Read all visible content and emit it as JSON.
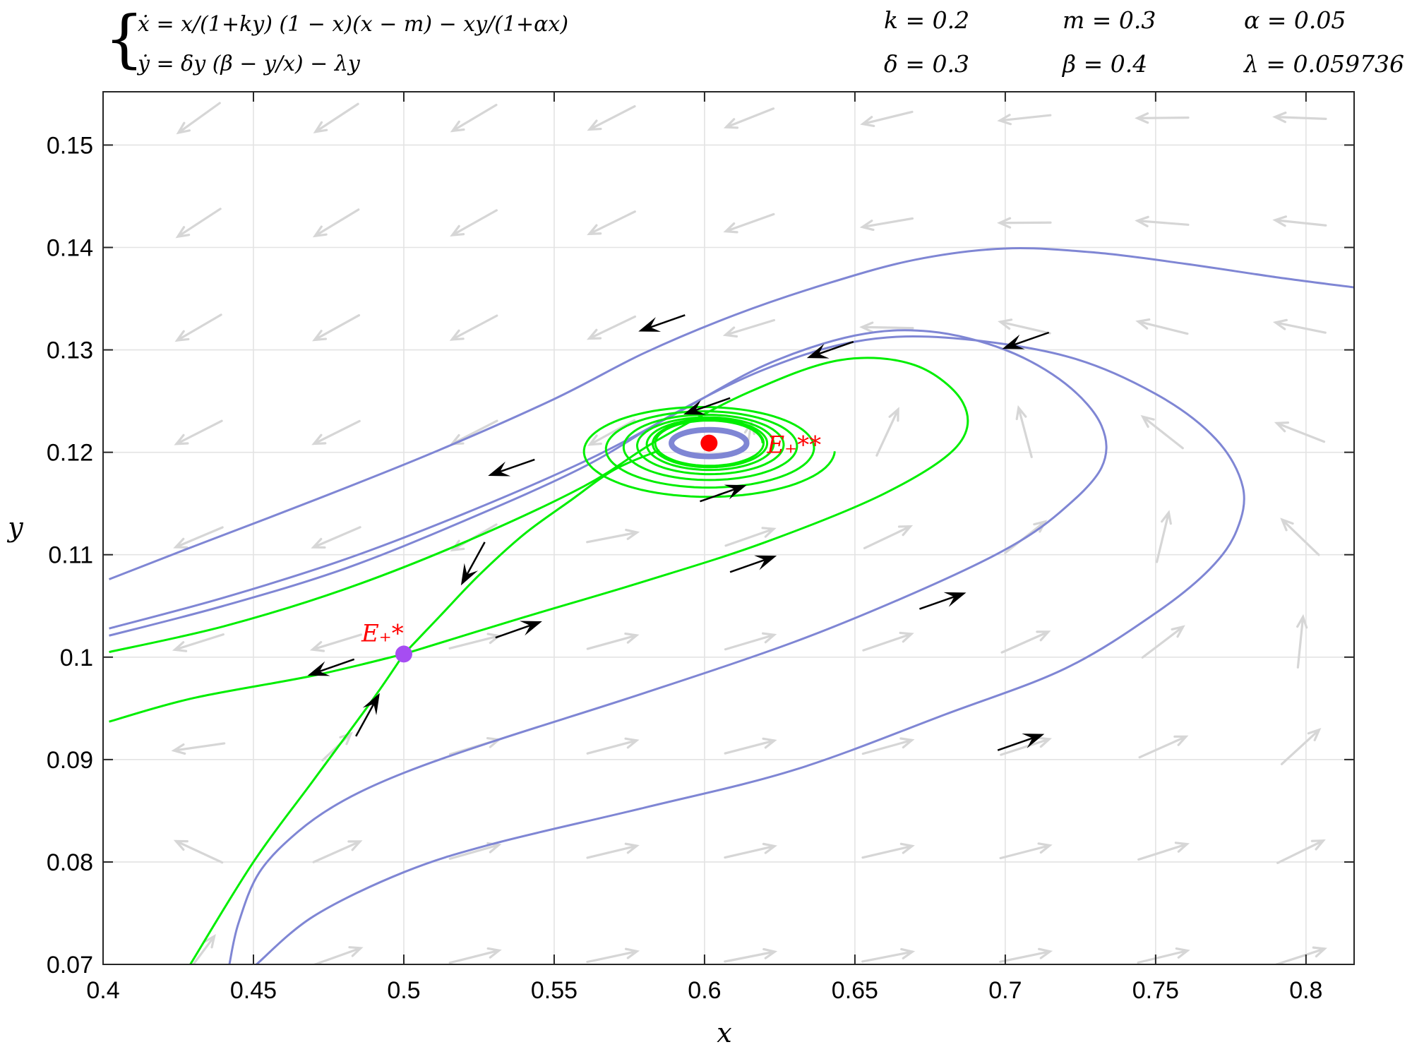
{
  "chart_data": {
    "type": "line",
    "title": "",
    "xlabel": "x",
    "ylabel": "y",
    "xlim": [
      0.4,
      0.816
    ],
    "ylim": [
      0.07,
      0.1552
    ],
    "grid": true,
    "x_ticks": [
      0.4,
      0.45,
      0.5,
      0.55,
      0.6,
      0.65,
      0.7,
      0.75,
      0.8
    ],
    "y_ticks": [
      0.07,
      0.08,
      0.09,
      0.1,
      0.11,
      0.12,
      0.13,
      0.14,
      0.15
    ],
    "x_tick_labels": [
      "0.4",
      "0.45",
      "0.5",
      "0.55",
      "0.6",
      "0.65",
      "0.7",
      "0.75",
      "0.8"
    ],
    "y_tick_labels": [
      "0.07",
      "0.08",
      "0.09",
      "0.1",
      "0.11",
      "0.12",
      "0.13",
      "0.14",
      "0.15"
    ],
    "equations": {
      "x_dot": "ẋ = x/(1+ky) (1 − x)(x − m) − xy/(1+αx)",
      "y_dot": "ẏ = δy (β − y/x) − λy"
    },
    "parameters": [
      {
        "label": "k = 0.2"
      },
      {
        "label": "m = 0.3"
      },
      {
        "label": "α = 0.05"
      },
      {
        "label": "δ = 0.3"
      },
      {
        "label": "β = 0.4"
      },
      {
        "label": "λ = 0.059736"
      }
    ],
    "equilibria": [
      {
        "label": "E₊*",
        "x": 0.5,
        "y": 0.1003,
        "color": "#a64df2"
      },
      {
        "label": "E₊**",
        "x": 0.6015,
        "y": 0.1209,
        "color": "#ff0000"
      }
    ],
    "colors": {
      "blue_orbit": "#7f86d4",
      "green_orbit": "#00ee00",
      "field_arrow": "#d6d6d6",
      "direction_arrow": "#000000",
      "grid": "#e3e3e3",
      "label_red": "#ff0000"
    },
    "series": [
      {
        "color": "blue",
        "points": [
          [
            0.402,
            0.1076
          ],
          [
            0.43,
            0.1108
          ],
          [
            0.47,
            0.1153
          ],
          [
            0.51,
            0.12
          ],
          [
            0.55,
            0.1252
          ],
          [
            0.58,
            0.1297
          ],
          [
            0.61,
            0.1334
          ],
          [
            0.64,
            0.1364
          ],
          [
            0.67,
            0.1388
          ],
          [
            0.7,
            0.1399
          ],
          [
            0.73,
            0.1395
          ],
          [
            0.76,
            0.1384
          ],
          [
            0.79,
            0.1371
          ],
          [
            0.816,
            0.1361
          ]
        ]
      },
      {
        "color": "blue",
        "points": [
          [
            0.402,
            0.1028
          ],
          [
            0.44,
            0.1058
          ],
          [
            0.48,
            0.1095
          ],
          [
            0.52,
            0.114
          ],
          [
            0.56,
            0.1191
          ],
          [
            0.59,
            0.1237
          ],
          [
            0.62,
            0.1285
          ],
          [
            0.65,
            0.1314
          ],
          [
            0.675,
            0.1318
          ],
          [
            0.7,
            0.13
          ],
          [
            0.72,
            0.1267
          ],
          [
            0.732,
            0.1226
          ],
          [
            0.732,
            0.1185
          ],
          [
            0.718,
            0.1141
          ],
          [
            0.7,
            0.1105
          ],
          [
            0.67,
            0.1063
          ],
          [
            0.63,
            0.1015
          ],
          [
            0.58,
            0.0965
          ],
          [
            0.53,
            0.0918
          ],
          [
            0.5,
            0.0887
          ],
          [
            0.48,
            0.086
          ],
          [
            0.465,
            0.083
          ],
          [
            0.452,
            0.079
          ],
          [
            0.445,
            0.074
          ],
          [
            0.442,
            0.07
          ]
        ]
      },
      {
        "color": "blue",
        "points": [
          [
            0.402,
            0.1021
          ],
          [
            0.44,
            0.105
          ],
          [
            0.48,
            0.1086
          ],
          [
            0.52,
            0.1133
          ],
          [
            0.56,
            0.1186
          ],
          [
            0.59,
            0.1238
          ],
          [
            0.62,
            0.1281
          ],
          [
            0.65,
            0.1308
          ],
          [
            0.68,
            0.1312
          ],
          [
            0.72,
            0.1294
          ],
          [
            0.75,
            0.1257
          ],
          [
            0.77,
            0.1213
          ],
          [
            0.779,
            0.1166
          ],
          [
            0.777,
            0.1124
          ],
          [
            0.768,
            0.1086
          ],
          [
            0.75,
            0.1043
          ],
          [
            0.72,
            0.0989
          ],
          [
            0.68,
            0.0944
          ],
          [
            0.63,
            0.089
          ],
          [
            0.58,
            0.0853
          ],
          [
            0.53,
            0.0818
          ],
          [
            0.5,
            0.079
          ],
          [
            0.47,
            0.0747
          ],
          [
            0.451,
            0.07
          ]
        ]
      },
      {
        "color": "blue",
        "ellipse": {
          "cx": 0.6015,
          "cy": 0.1209,
          "rx": 0.0125,
          "ry": 0.0013
        }
      },
      {
        "color": "green",
        "points": [
          [
            0.402,
            0.1005
          ],
          [
            0.44,
            0.103
          ],
          [
            0.48,
            0.1066
          ],
          [
            0.52,
            0.1112
          ],
          [
            0.56,
            0.1167
          ],
          [
            0.585,
            0.1213
          ],
          [
            0.615,
            0.1259
          ],
          [
            0.645,
            0.129
          ],
          [
            0.67,
            0.1285
          ],
          [
            0.686,
            0.1248
          ],
          [
            0.684,
            0.1206
          ],
          [
            0.66,
            0.116
          ],
          [
            0.62,
            0.1112
          ],
          [
            0.58,
            0.1074
          ],
          [
            0.54,
            0.1039
          ],
          [
            0.5,
            0.1003
          ]
        ]
      },
      {
        "color": "green",
        "points": [
          [
            0.5,
            0.1003
          ],
          [
            0.47,
            0.0982
          ],
          [
            0.43,
            0.096
          ],
          [
            0.402,
            0.0937
          ]
        ]
      },
      {
        "color": "green",
        "points": [
          [
            0.5,
            0.1003
          ],
          [
            0.512,
            0.104
          ],
          [
            0.525,
            0.108
          ],
          [
            0.54,
            0.112
          ],
          [
            0.555,
            0.1152
          ],
          [
            0.57,
            0.1183
          ],
          [
            0.585,
            0.1202
          ]
        ]
      },
      {
        "color": "green",
        "points": [
          [
            0.429,
            0.07
          ],
          [
            0.45,
            0.08
          ],
          [
            0.47,
            0.088
          ],
          [
            0.49,
            0.096
          ],
          [
            0.5,
            0.1003
          ]
        ]
      },
      {
        "color": "green",
        "spiral": {
          "cx": 0.6015,
          "cy": 0.1209,
          "rx_start": 0.0178,
          "ry_start": 0.0022,
          "rx_outer": 0.0438,
          "ry_outer": 0.0047,
          "turns": 7
        }
      }
    ],
    "direction_arrows": [
      {
        "x": 0.578,
        "y": 0.1318,
        "dir": "left"
      },
      {
        "x": 0.528,
        "y": 0.1177,
        "dir": "left"
      },
      {
        "x": 0.699,
        "y": 0.1301,
        "dir": "left"
      },
      {
        "x": 0.634,
        "y": 0.1292,
        "dir": "left"
      },
      {
        "x": 0.593,
        "y": 0.1237,
        "dir": "left"
      },
      {
        "x": 0.614,
        "y": 0.1168,
        "dir": "right"
      },
      {
        "x": 0.624,
        "y": 0.1099,
        "dir": "right"
      },
      {
        "x": 0.546,
        "y": 0.1035,
        "dir": "right"
      },
      {
        "x": 0.468,
        "y": 0.0982,
        "dir": "left"
      },
      {
        "x": 0.519,
        "y": 0.107,
        "dir": "down"
      },
      {
        "x": 0.492,
        "y": 0.0965,
        "dir": "up"
      },
      {
        "x": 0.687,
        "y": 0.1063,
        "dir": "right"
      },
      {
        "x": 0.713,
        "y": 0.0925,
        "dir": "right"
      }
    ]
  }
}
